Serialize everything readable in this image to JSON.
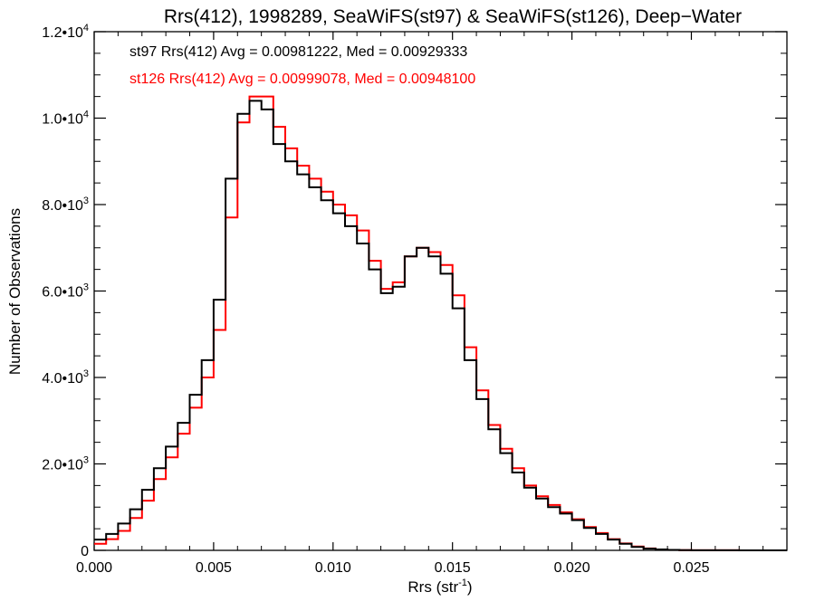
{
  "chart_data": {
    "type": "line",
    "title": "Rrs(412), 1998289, SeaWiFS(st97) & SeaWiFS(st126), Deep−Water",
    "xlabel": "Rrs (str",
    "xlabel_sup": "-1",
    "xlabel_close": ")",
    "ylabel": "Number of Observations",
    "xlim": [
      0.0,
      0.029
    ],
    "ylim": [
      0,
      12000
    ],
    "grid": false,
    "x_ticks": [
      {
        "value": 0.0,
        "label": "0.000"
      },
      {
        "value": 0.005,
        "label": "0.005"
      },
      {
        "value": 0.01,
        "label": "0.010"
      },
      {
        "value": 0.015,
        "label": "0.015"
      },
      {
        "value": 0.02,
        "label": "0.020"
      },
      {
        "value": 0.025,
        "label": "0.025"
      }
    ],
    "y_ticks": [
      {
        "value": 0,
        "mantissa": "0",
        "exp": ""
      },
      {
        "value": 2000,
        "mantissa": "2.0•1",
        "exp": "3"
      },
      {
        "value": 4000,
        "mantissa": "4.0•1",
        "exp": "3"
      },
      {
        "value": 6000,
        "mantissa": "6.0•1",
        "exp": "3"
      },
      {
        "value": 8000,
        "mantissa": "8.0•1",
        "exp": "3"
      },
      {
        "value": 10000,
        "mantissa": "1.0•1",
        "exp": "4"
      },
      {
        "value": 12000,
        "mantissa": "1.2•1",
        "exp": "4"
      }
    ],
    "annotations": [
      {
        "text": "st97 Rrs(412) Avg = 0.00981222, Med = 0.00929333",
        "color": "#000000"
      },
      {
        "text": "st126 Rrs(412) Avg = 0.00999078, Med = 0.00948100",
        "color": "#ff0000"
      }
    ],
    "series": [
      {
        "color": "#000000",
        "x": [
          0.0,
          0.0005,
          0.001,
          0.0015,
          0.002,
          0.0025,
          0.003,
          0.0035,
          0.004,
          0.0045,
          0.005,
          0.0055,
          0.006,
          0.0065,
          0.007,
          0.0075,
          0.008,
          0.0085,
          0.009,
          0.0095,
          0.01,
          0.0105,
          0.011,
          0.0115,
          0.012,
          0.0125,
          0.013,
          0.0135,
          0.014,
          0.0145,
          0.015,
          0.0155,
          0.016,
          0.0165,
          0.017,
          0.0175,
          0.018,
          0.0185,
          0.019,
          0.0195,
          0.02,
          0.0205,
          0.021,
          0.0215,
          0.022,
          0.0225,
          0.023,
          0.0235,
          0.024,
          0.0245,
          0.025,
          0.026,
          0.027,
          0.028,
          0.029
        ],
        "values": [
          250,
          380,
          620,
          950,
          1400,
          1900,
          2400,
          2950,
          3600,
          4400,
          5800,
          8600,
          10100,
          10400,
          10200,
          9400,
          9000,
          8700,
          8400,
          8100,
          7800,
          7500,
          7100,
          6500,
          5950,
          6100,
          6800,
          7000,
          6800,
          6400,
          5600,
          4400,
          3500,
          2800,
          2250,
          1800,
          1450,
          1200,
          1000,
          850,
          700,
          520,
          380,
          250,
          150,
          80,
          40,
          20,
          10,
          5,
          3,
          2,
          0,
          0,
          0
        ]
      },
      {
        "color": "#ff0000",
        "x": [
          0.0,
          0.0005,
          0.001,
          0.0015,
          0.002,
          0.0025,
          0.003,
          0.0035,
          0.004,
          0.0045,
          0.005,
          0.0055,
          0.006,
          0.0065,
          0.007,
          0.0075,
          0.008,
          0.0085,
          0.009,
          0.0095,
          0.01,
          0.0105,
          0.011,
          0.0115,
          0.012,
          0.0125,
          0.013,
          0.0135,
          0.014,
          0.0145,
          0.015,
          0.0155,
          0.016,
          0.0165,
          0.017,
          0.0175,
          0.018,
          0.0185,
          0.019,
          0.0195,
          0.02,
          0.0205,
          0.021,
          0.0215,
          0.022,
          0.0225,
          0.023,
          0.0235,
          0.024,
          0.0245,
          0.025,
          0.026,
          0.027,
          0.028,
          0.029
        ],
        "values": [
          150,
          260,
          450,
          750,
          1150,
          1650,
          2150,
          2700,
          3300,
          4000,
          5100,
          7700,
          9900,
          10500,
          10500,
          9800,
          9300,
          8900,
          8600,
          8300,
          8000,
          7750,
          7400,
          6700,
          6050,
          6200,
          6800,
          7000,
          6900,
          6600,
          5900,
          4700,
          3700,
          2900,
          2350,
          1900,
          1500,
          1250,
          1050,
          880,
          720,
          540,
          400,
          260,
          160,
          90,
          45,
          20,
          10,
          5,
          3,
          2,
          0,
          0,
          0
        ]
      }
    ]
  }
}
